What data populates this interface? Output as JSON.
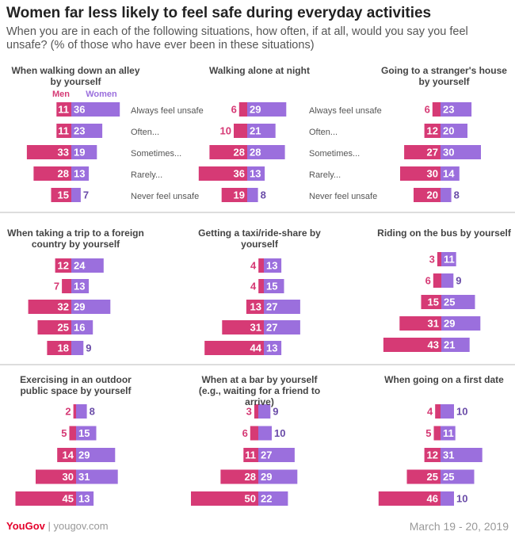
{
  "header": {
    "title": "Women far less likely to feel safe during everyday activities",
    "subtitle": "When you are in each of the following situations, how often, if at all, would you say you feel unsafe? (% of those who have ever been in these situations)"
  },
  "chart_data": [
    {
      "type": "butterfly",
      "title": "When walking down an alley by yourself",
      "categories": [
        "Always feel unsafe",
        "Often...",
        "Sometimes...",
        "Rarely...",
        "Never feel unsafe"
      ],
      "series": [
        {
          "name": "Men",
          "color": "#d63a75",
          "values": [
            11,
            11,
            33,
            28,
            15
          ]
        },
        {
          "name": "Women",
          "color": "#9b6fdd",
          "values": [
            36,
            23,
            19,
            13,
            7
          ]
        }
      ]
    },
    {
      "type": "butterfly",
      "title": "Walking alone at night",
      "categories": [
        "Always feel unsafe",
        "Often...",
        "Sometimes...",
        "Rarely...",
        "Never feel unsafe"
      ],
      "series": [
        {
          "name": "Men",
          "color": "#d63a75",
          "values": [
            6,
            10,
            28,
            36,
            19
          ]
        },
        {
          "name": "Women",
          "color": "#9b6fdd",
          "values": [
            29,
            21,
            28,
            13,
            8
          ]
        }
      ]
    },
    {
      "type": "butterfly",
      "title": "Going to a stranger's house by yourself",
      "series": [
        {
          "name": "Men",
          "color": "#d63a75",
          "values": [
            6,
            12,
            27,
            30,
            20
          ]
        },
        {
          "name": "Women",
          "color": "#9b6fdd",
          "values": [
            23,
            20,
            30,
            14,
            8
          ]
        }
      ]
    },
    {
      "type": "butterfly",
      "title": "When taking a trip to a foreign country by yourself",
      "series": [
        {
          "name": "Men",
          "color": "#d63a75",
          "values": [
            12,
            7,
            32,
            25,
            18
          ]
        },
        {
          "name": "Women",
          "color": "#9b6fdd",
          "values": [
            24,
            13,
            29,
            16,
            9
          ]
        }
      ]
    },
    {
      "type": "butterfly",
      "title": "Getting a taxi/ride-share by yourself",
      "series": [
        {
          "name": "Men",
          "color": "#d63a75",
          "values": [
            4,
            4,
            13,
            31,
            44
          ]
        },
        {
          "name": "Women",
          "color": "#9b6fdd",
          "values": [
            13,
            15,
            27,
            27,
            13
          ]
        }
      ]
    },
    {
      "type": "butterfly",
      "title": "Riding on the bus by yourself",
      "series": [
        {
          "name": "Men",
          "color": "#d63a75",
          "values": [
            3,
            6,
            15,
            31,
            43
          ]
        },
        {
          "name": "Women",
          "color": "#9b6fdd",
          "values": [
            11,
            9,
            25,
            29,
            21
          ]
        }
      ]
    },
    {
      "type": "butterfly",
      "title": "Exercising in an outdoor public space by yourself",
      "series": [
        {
          "name": "Men",
          "color": "#d63a75",
          "values": [
            2,
            5,
            14,
            30,
            45
          ]
        },
        {
          "name": "Women",
          "color": "#9b6fdd",
          "values": [
            8,
            15,
            29,
            31,
            13
          ]
        }
      ]
    },
    {
      "type": "butterfly",
      "title": "When at a bar by yourself (e.g., waiting for a friend to arrive)",
      "series": [
        {
          "name": "Men",
          "color": "#d63a75",
          "values": [
            3,
            6,
            11,
            28,
            50
          ]
        },
        {
          "name": "Women",
          "color": "#9b6fdd",
          "values": [
            9,
            10,
            27,
            29,
            22
          ]
        }
      ]
    },
    {
      "type": "butterfly",
      "title": "When going on a first date",
      "series": [
        {
          "name": "Men",
          "color": "#d63a75",
          "values": [
            4,
            5,
            12,
            25,
            46
          ]
        },
        {
          "name": "Women",
          "color": "#9b6fdd",
          "values": [
            10,
            11,
            31,
            25,
            10
          ]
        }
      ]
    }
  ],
  "footer": {
    "brand": "YouGov",
    "url": "yougov.com",
    "date": "March 19 - 20, 2019"
  }
}
